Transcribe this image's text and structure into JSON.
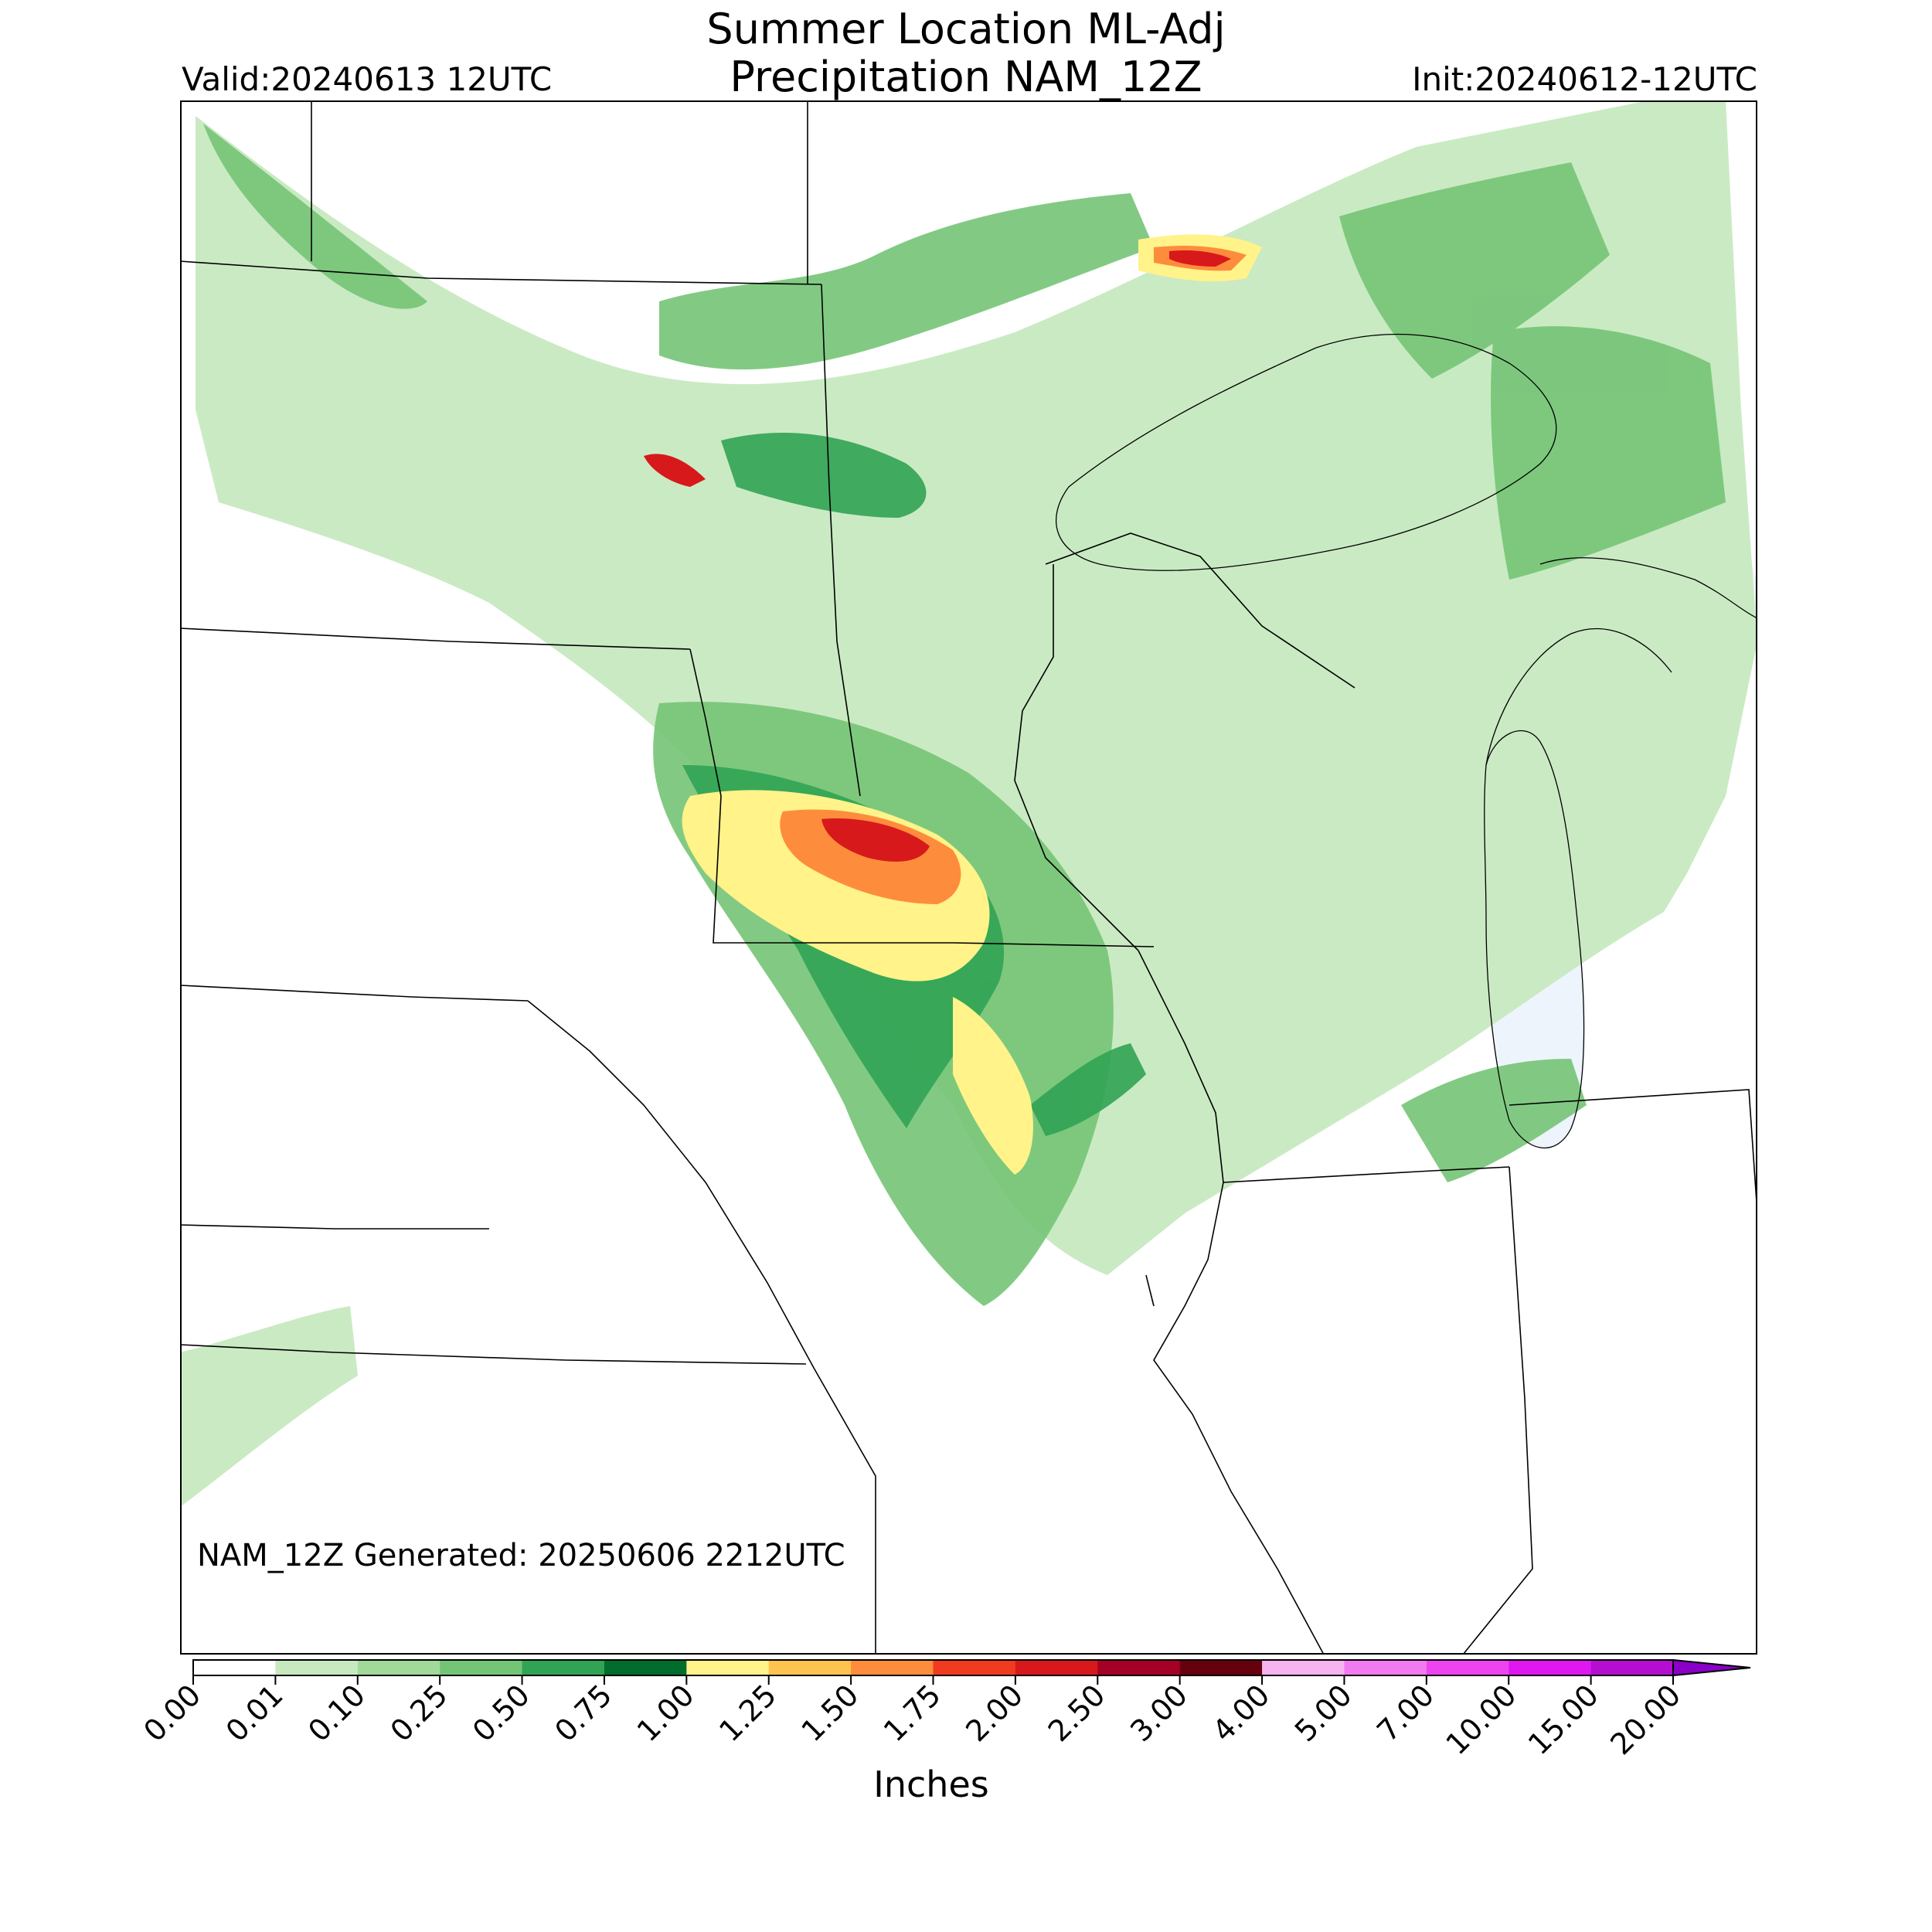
{
  "title": {
    "line1": "Summer Location ML-Adj",
    "line2": "Precipitation NAM_12Z"
  },
  "valid_label": "Valid:20240613 12UTC",
  "init_label": "Init:20240612-12UTC",
  "generated_label": "NAM_12Z Generated: 20250606 2212UTC",
  "colorbar": {
    "unit_label": "Inches",
    "ticks": [
      "0.00",
      "0.01",
      "0.10",
      "0.25",
      "0.50",
      "0.75",
      "1.00",
      "1.25",
      "1.50",
      "1.75",
      "2.00",
      "2.50",
      "3.00",
      "4.00",
      "5.00",
      "7.00",
      "10.00",
      "15.00",
      "20.00"
    ],
    "colors": [
      "#ffffff",
      "#c7e9c0",
      "#a1d99b",
      "#74c476",
      "#31a354",
      "#006d2c",
      "#fff38a",
      "#fec44f",
      "#fd8d3c",
      "#f03b20",
      "#d7191c",
      "#a50026",
      "#67000d",
      "#f7b2f0",
      "#f27af0",
      "#ee44f0",
      "#df18f0",
      "#b40fd0",
      "#8a00c8"
    ],
    "extend": "max"
  },
  "colors": {
    "water": "#eef4fb",
    "border": "#000000"
  }
}
